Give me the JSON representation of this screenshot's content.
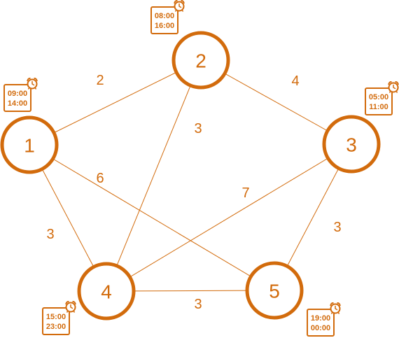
{
  "colors": {
    "accent": "#d26b0c",
    "background": "#ffffff"
  },
  "graph": {
    "nodes": [
      {
        "id": "1",
        "label": "1",
        "time_window": {
          "start": "09:00",
          "end": "14:00"
        },
        "icon": "alarm-clock-icon"
      },
      {
        "id": "2",
        "label": "2",
        "time_window": {
          "start": "08:00",
          "end": "16:00"
        },
        "icon": "alarm-clock-icon"
      },
      {
        "id": "3",
        "label": "3",
        "time_window": {
          "start": "05:00",
          "end": "11:00"
        },
        "icon": "alarm-clock-icon"
      },
      {
        "id": "4",
        "label": "4",
        "time_window": {
          "start": "15:00",
          "end": "23:00"
        },
        "icon": "alarm-clock-icon"
      },
      {
        "id": "5",
        "label": "5",
        "time_window": {
          "start": "19:00",
          "end": "00:00"
        },
        "icon": "alarm-clock-icon"
      }
    ],
    "edges": [
      {
        "from": "1",
        "to": "2",
        "weight": "2"
      },
      {
        "from": "2",
        "to": "3",
        "weight": "4"
      },
      {
        "from": "2",
        "to": "4",
        "weight": "3"
      },
      {
        "from": "1",
        "to": "5",
        "weight": "6"
      },
      {
        "from": "3",
        "to": "4",
        "weight": "7"
      },
      {
        "from": "1",
        "to": "4",
        "weight": "3"
      },
      {
        "from": "3",
        "to": "5",
        "weight": "3"
      },
      {
        "from": "4",
        "to": "5",
        "weight": "3"
      }
    ]
  }
}
